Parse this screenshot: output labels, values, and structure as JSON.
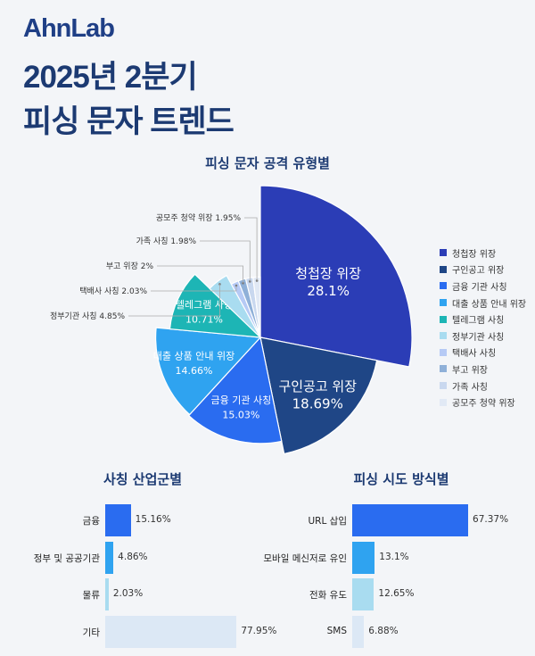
{
  "logo": "AhnLab",
  "title_line1": "2025년 2분기",
  "title_line2": "피싱 문자 트렌드",
  "chart_data": [
    {
      "type": "pie",
      "title": "피싱 문자 공격 유형별",
      "legend_position": "right",
      "categories": [
        "청첩장 위장",
        "구인공고 위장",
        "금융 기관 사칭",
        "대출 상품 안내 위장",
        "텔레그램 사칭",
        "정부기관 사칭",
        "택배사 사칭",
        "부고 위장",
        "가족 사칭",
        "공모주 청약 위장"
      ],
      "values": [
        28.1,
        18.69,
        15.03,
        14.66,
        10.71,
        4.85,
        2.03,
        2,
        1.98,
        1.95
      ],
      "labels": [
        "28.1%",
        "18.69%",
        "15.03%",
        "14.66%",
        "10.71%",
        "4.85%",
        "2.03%",
        "2%",
        "1.98%",
        "1.95%"
      ],
      "colors": [
        "#2b3db6",
        "#1f4686",
        "#2a6cf0",
        "#2fa3f0",
        "#1db5b5",
        "#a9dcf0",
        "#b6caf5",
        "#8fb0d8",
        "#c9d8ef",
        "#e1e9f5"
      ]
    },
    {
      "type": "bar",
      "orientation": "horizontal",
      "title": "사칭 산업군별",
      "categories": [
        "금융",
        "정부 및 공공기관",
        "물류",
        "기타"
      ],
      "values": [
        15.16,
        4.86,
        2.03,
        77.95
      ],
      "labels": [
        "15.16%",
        "4.86%",
        "2.03%",
        "77.95%"
      ],
      "colors": [
        "#2a6cf0",
        "#2fa3f0",
        "#a9dcf0",
        "#dce8f5"
      ]
    },
    {
      "type": "bar",
      "orientation": "horizontal",
      "title": "피싱 시도 방식별",
      "categories": [
        "URL 삽입",
        "모바일 메신저로 유인",
        "전화 유도",
        "SMS"
      ],
      "values": [
        67.37,
        13.1,
        12.65,
        6.88
      ],
      "labels": [
        "67.37%",
        "13.1%",
        "12.65%",
        "6.88%"
      ],
      "colors": [
        "#2a6cf0",
        "#2fa3f0",
        "#a9dcf0",
        "#dce8f5"
      ]
    }
  ]
}
